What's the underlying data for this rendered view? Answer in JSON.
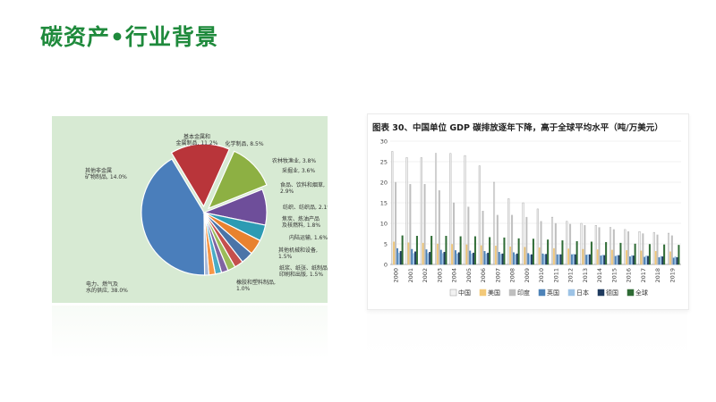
{
  "page": {
    "title": "碳资产•行业背景"
  },
  "colors": {
    "title": "#1f8a3c",
    "pie_bg": "#d7ead3"
  },
  "chart_data": [
    {
      "type": "pie",
      "slices": [
        {
          "label": "电力、燃气及水的供应",
          "value": 38.0,
          "display": "电力、燃气及\n水的供应, 38.0%",
          "color": "#4a7ebb"
        },
        {
          "label": "其他非金属矿物制品",
          "value": 14.0,
          "display": "其他非金属\n矿物制品, 14.0%",
          "color": "#b9353a"
        },
        {
          "label": "基本金属和金属制品",
          "value": 11.2,
          "display": "基本金属和\n金属制品, 11.2%",
          "color": "#8db043"
        },
        {
          "label": "化学制品",
          "value": 8.5,
          "display": "化学制品, 8.5%",
          "color": "#6e4e9a"
        },
        {
          "label": "农林牧渔业",
          "value": 3.8,
          "display": "农林牧渔业, 3.8%",
          "color": "#2d9bb3"
        },
        {
          "label": "采掘业",
          "value": 3.6,
          "display": "采掘业, 3.6%",
          "color": "#e8822f"
        },
        {
          "label": "食品、饮料和烟草",
          "value": 2.9,
          "display": "食品、饮料和烟草,\n2.9%",
          "color": "#4b74a8"
        },
        {
          "label": "纺织、纺织品",
          "value": 2.1,
          "display": "纺织、纺织品, 2.1%",
          "color": "#c5504d"
        },
        {
          "label": "焦炭、炼油产品及核燃料",
          "value": 1.8,
          "display": "焦炭、炼油产品\n及核燃料, 1.8%",
          "color": "#9bbb59"
        },
        {
          "label": "内陆运输",
          "value": 1.6,
          "display": "内陆运输, 1.6%",
          "color": "#8064a2"
        },
        {
          "label": "其他机械和设备",
          "value": 1.5,
          "display": "其他机械和设备,\n1.5%",
          "color": "#4bacc6"
        },
        {
          "label": "纸浆、纸张、纸制品、印刷和出版",
          "value": 1.5,
          "display": "纸浆、纸张、纸制品、\n印刷和出版, 1.5%",
          "color": "#f79646"
        },
        {
          "label": "橡胶和塑料制品",
          "value": 1.0,
          "display": "橡胶和塑料制品,\n1.0%",
          "color": "#a5b8d8"
        }
      ]
    },
    {
      "type": "bar",
      "title": "图表 30、中国单位 GDP 碳排放逐年下降，高于全球平均水平（吨/万美元）",
      "ylim": [
        0,
        30
      ],
      "yticks": [
        "0",
        "5",
        "10",
        "15",
        "20",
        "25",
        "30"
      ],
      "categories": [
        "2000",
        "2001",
        "2002",
        "2003",
        "2004",
        "2005",
        "2006",
        "2007",
        "2008",
        "2009",
        "2010",
        "2011",
        "2012",
        "2013",
        "2014",
        "2015",
        "2016",
        "2017",
        "2018",
        "2019"
      ],
      "series": [
        {
          "name": "中国",
          "color": "#f2f2f2",
          "values": [
            27.5,
            26,
            26,
            27,
            27,
            26.5,
            24,
            20,
            16,
            15,
            13.5,
            11.5,
            10.5,
            10,
            9.5,
            9,
            8.5,
            8,
            7.8,
            7.6
          ]
        },
        {
          "name": "美国",
          "color": "#f3c979",
          "values": [
            5.5,
            5.3,
            5.2,
            5.0,
            4.9,
            4.8,
            4.6,
            4.5,
            4.3,
            4.2,
            4.1,
            3.9,
            3.8,
            3.7,
            3.6,
            3.5,
            3.4,
            3.3,
            3.2,
            3.1
          ]
        },
        {
          "name": "印度",
          "color": "#bfbfbf",
          "values": [
            20,
            19.5,
            19.5,
            18,
            15,
            14,
            13,
            12,
            12,
            11.5,
            10.5,
            10,
            9.8,
            9.5,
            9,
            8.5,
            8,
            7.5,
            7.2,
            7
          ]
        },
        {
          "name": "英国",
          "color": "#4e83b8",
          "values": [
            3.9,
            3.7,
            3.6,
            3.5,
            3.4,
            3.3,
            3.2,
            3.0,
            2.9,
            2.7,
            2.6,
            2.4,
            2.4,
            2.3,
            2.1,
            2.0,
            1.9,
            1.8,
            1.7,
            1.6
          ]
        },
        {
          "name": "日本",
          "color": "#9dc3e6",
          "values": [
            2.8,
            2.7,
            2.7,
            2.7,
            2.6,
            2.6,
            2.6,
            2.5,
            2.4,
            2.3,
            2.4,
            2.4,
            2.5,
            2.4,
            2.3,
            2.2,
            2.2,
            2.1,
            2.0,
            1.9
          ]
        },
        {
          "name": "德国",
          "color": "#1f3a5f",
          "values": [
            3.2,
            3.1,
            3.0,
            3.0,
            2.9,
            2.8,
            2.8,
            2.6,
            2.6,
            2.4,
            2.5,
            2.4,
            2.4,
            2.4,
            2.2,
            2.2,
            2.1,
            2.0,
            1.9,
            1.7
          ]
        },
        {
          "name": "全球",
          "color": "#2e6b34",
          "values": [
            7.0,
            6.9,
            6.9,
            6.9,
            6.8,
            6.8,
            6.6,
            6.5,
            6.3,
            6.2,
            6.0,
            5.8,
            5.6,
            5.5,
            5.4,
            5.2,
            5.0,
            4.9,
            4.8,
            4.7
          ]
        }
      ]
    }
  ]
}
